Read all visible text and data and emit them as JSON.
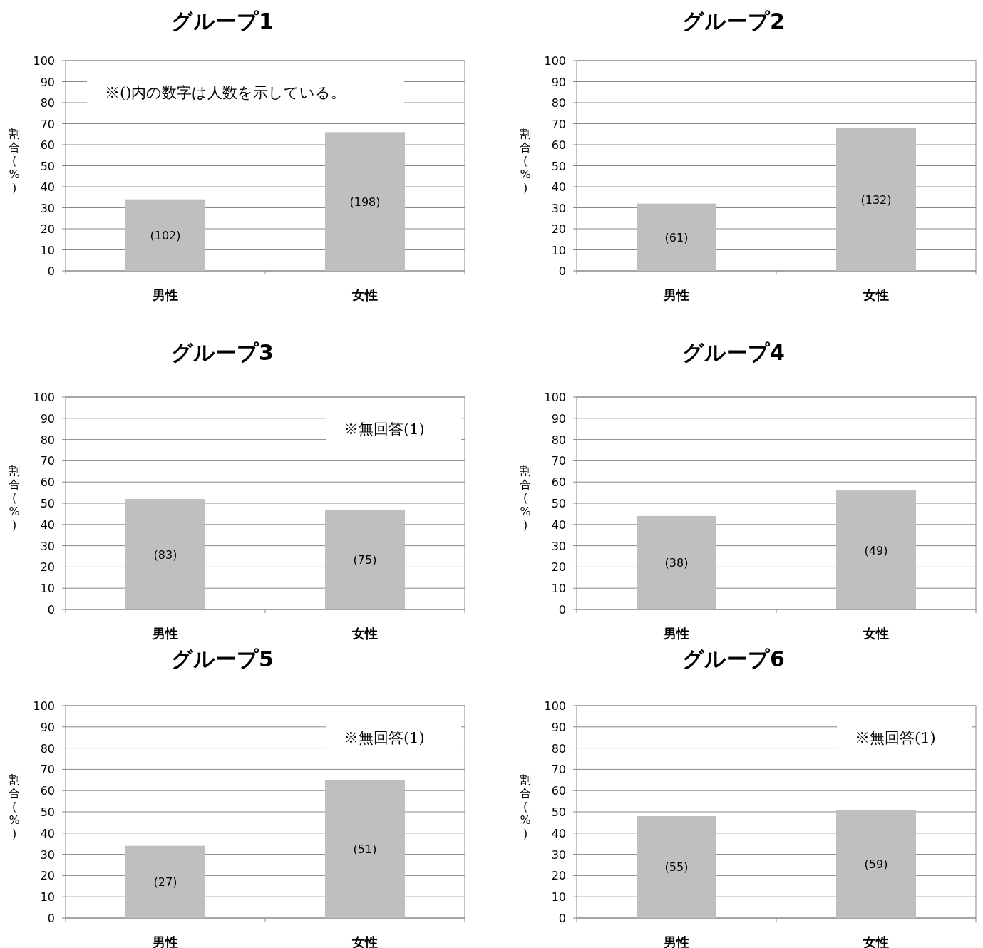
{
  "chart_data": [
    {
      "type": "bar",
      "title": "グループ1",
      "ylabel": "割合(%)",
      "categories": [
        "男性",
        "女性"
      ],
      "values": [
        34,
        66
      ],
      "color": "#bfbfbf",
      "ylim": [
        0,
        100
      ],
      "yticks": [
        0,
        10,
        20,
        30,
        40,
        50,
        60,
        70,
        80,
        90,
        100
      ],
      "grid": "y",
      "annotations": [
        "※()内の数字は人数を示している。",
        "(102)",
        "(198)"
      ]
    },
    {
      "type": "bar",
      "title": "グループ2",
      "ylabel": "割合(%)",
      "categories": [
        "男性",
        "女性"
      ],
      "values": [
        32,
        68
      ],
      "color": "#bfbfbf",
      "ylim": [
        0,
        100
      ],
      "yticks": [
        0,
        10,
        20,
        30,
        40,
        50,
        60,
        70,
        80,
        90,
        100
      ],
      "grid": "y",
      "annotations": [
        "(61)",
        "(132)"
      ]
    },
    {
      "type": "bar",
      "title": "グループ3",
      "ylabel": "割合(%)",
      "categories": [
        "男性",
        "女性"
      ],
      "values": [
        52,
        47
      ],
      "color": "#bfbfbf",
      "ylim": [
        0,
        100
      ],
      "yticks": [
        0,
        10,
        20,
        30,
        40,
        50,
        60,
        70,
        80,
        90,
        100
      ],
      "grid": "y",
      "annotations": [
        "※無回答(1)",
        "(83)",
        "(75)"
      ]
    },
    {
      "type": "bar",
      "title": "グループ4",
      "ylabel": "割合(%)",
      "categories": [
        "男性",
        "女性"
      ],
      "values": [
        44,
        56
      ],
      "color": "#bfbfbf",
      "ylim": [
        0,
        100
      ],
      "yticks": [
        0,
        10,
        20,
        30,
        40,
        50,
        60,
        70,
        80,
        90,
        100
      ],
      "grid": "y",
      "annotations": [
        "(38)",
        "(49)"
      ]
    },
    {
      "type": "bar",
      "title": "グループ5",
      "ylabel": "割合(%)",
      "categories": [
        "男性",
        "女性"
      ],
      "values": [
        34,
        65
      ],
      "color": "#bfbfbf",
      "ylim": [
        0,
        100
      ],
      "yticks": [
        0,
        10,
        20,
        30,
        40,
        50,
        60,
        70,
        80,
        90,
        100
      ],
      "grid": "y",
      "annotations": [
        "※無回答(1)",
        "(27)",
        "(51)"
      ]
    },
    {
      "type": "bar",
      "title": "グループ6",
      "ylabel": "割合(%)",
      "categories": [
        "男性",
        "女性"
      ],
      "values": [
        48,
        51
      ],
      "color": "#bfbfbf",
      "ylim": [
        0,
        100
      ],
      "yticks": [
        0,
        10,
        20,
        30,
        40,
        50,
        60,
        70,
        80,
        90,
        100
      ],
      "grid": "y",
      "annotations": [
        "※無回答(1)",
        "(55)",
        "(59)"
      ]
    }
  ]
}
